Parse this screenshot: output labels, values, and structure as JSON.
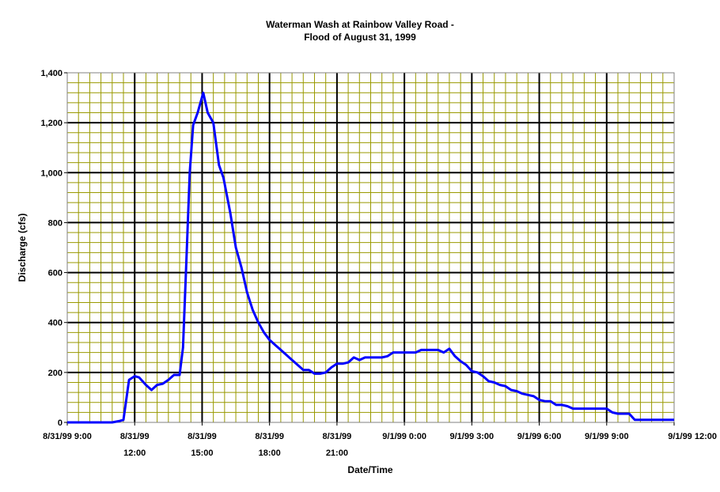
{
  "chart_data": {
    "type": "line",
    "title": "Waterman Wash at Rainbow Valley Road -",
    "subtitle": "Flood of August 31, 1999",
    "xlabel": "Date/Time",
    "ylabel": "Discharge (cfs)",
    "xlim_hours": [
      0,
      27
    ],
    "ylim": [
      0,
      1400
    ],
    "y_ticks": [
      0,
      200,
      400,
      600,
      800,
      1000,
      1200,
      1400
    ],
    "y_tick_labels": [
      "0",
      "200",
      "400",
      "600",
      "800",
      "1,000",
      "1,200",
      "1,400"
    ],
    "x_ticks": [
      {
        "hour": 0,
        "line1": "8/31/99 9:00",
        "line2": ""
      },
      {
        "hour": 3,
        "line1": "8/31/99",
        "line2": "12:00"
      },
      {
        "hour": 6,
        "line1": "8/31/99",
        "line2": "15:00"
      },
      {
        "hour": 9,
        "line1": "8/31/99",
        "line2": "18:00"
      },
      {
        "hour": 12,
        "line1": "8/31/99",
        "line2": "21:00"
      },
      {
        "hour": 15,
        "line1": "9/1/99 0:00",
        "line2": ""
      },
      {
        "hour": 18,
        "line1": "9/1/99 3:00",
        "line2": ""
      },
      {
        "hour": 21,
        "line1": "9/1/99 6:00",
        "line2": ""
      },
      {
        "hour": 24,
        "line1": "9/1/99 9:00",
        "line2": ""
      },
      {
        "hour": 27,
        "line1": "9/1/99 12:00",
        "line2": ""
      }
    ],
    "minor_x_step_hours": 0.5,
    "minor_y_step": 40,
    "grid": true,
    "colors": {
      "series": "#0000ff",
      "minor_grid": "#999900",
      "major_grid": "#000000",
      "plot_bg": "#ffffff"
    },
    "series": [
      {
        "x": [
          0,
          2.0,
          2.3,
          2.5,
          2.75,
          3.0,
          3.2,
          3.5,
          3.75,
          4.0,
          4.25,
          4.5,
          4.75,
          5.0,
          5.15,
          5.3,
          5.45,
          5.6,
          5.8,
          6.05,
          6.25,
          6.5,
          6.75,
          6.95,
          7.25,
          7.5,
          7.75,
          8.0,
          8.25,
          8.5,
          8.75,
          9.0,
          9.25,
          9.5,
          9.75,
          10.0,
          10.25,
          10.5,
          10.75,
          11.0,
          11.25,
          11.5,
          11.75,
          12.0,
          12.25,
          12.5,
          12.75,
          13.0,
          13.25,
          13.5,
          13.75,
          14.0,
          14.25,
          14.5,
          14.75,
          15.0,
          15.25,
          15.5,
          15.75,
          16.0,
          16.5,
          16.75,
          17.0,
          17.25,
          17.5,
          17.75,
          18.0,
          18.25,
          18.5,
          18.75,
          19.0,
          19.25,
          19.5,
          19.75,
          20.0,
          20.25,
          20.5,
          20.75,
          21.0,
          21.25,
          21.5,
          21.75,
          22.0,
          22.25,
          22.5,
          22.75,
          23.0,
          23.5,
          24.0,
          24.25,
          24.5,
          24.75,
          25.0,
          25.25,
          25.5,
          27.0
        ],
        "y": [
          0,
          0,
          5,
          10,
          170,
          185,
          180,
          150,
          130,
          150,
          155,
          170,
          190,
          190,
          300,
          650,
          1000,
          1190,
          1240,
          1320,
          1240,
          1200,
          1030,
          980,
          840,
          700,
          620,
          520,
          450,
          400,
          360,
          330,
          310,
          290,
          270,
          250,
          230,
          210,
          210,
          195,
          195,
          200,
          220,
          235,
          235,
          240,
          260,
          250,
          260,
          260,
          260,
          260,
          265,
          280,
          280,
          280,
          280,
          280,
          290,
          290,
          290,
          280,
          295,
          265,
          245,
          230,
          205,
          200,
          185,
          165,
          160,
          150,
          145,
          130,
          125,
          115,
          110,
          105,
          90,
          85,
          85,
          70,
          70,
          65,
          55,
          55,
          55,
          55,
          55,
          40,
          35,
          35,
          35,
          10,
          10,
          10
        ]
      }
    ]
  }
}
